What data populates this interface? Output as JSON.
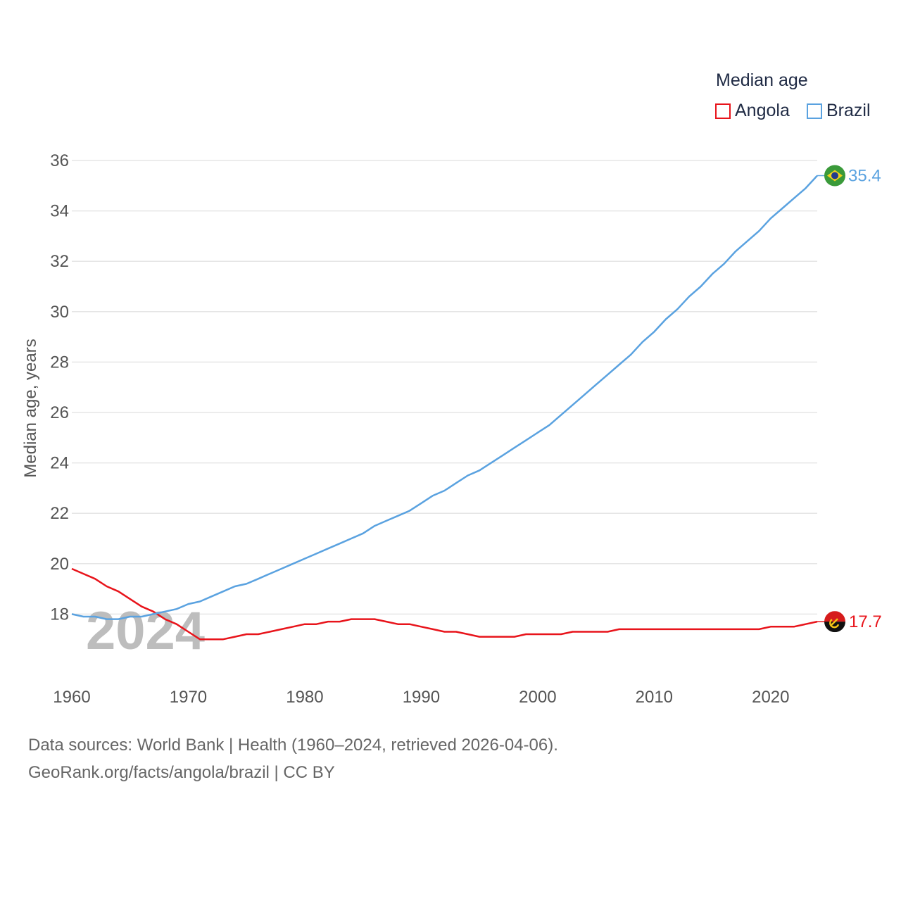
{
  "legend": {
    "title": "Median age",
    "items": [
      {
        "label": "Angola",
        "color": "#e8141b"
      },
      {
        "label": "Brazil",
        "color": "#5aa2e0"
      }
    ]
  },
  "source": {
    "line1": "Data sources: World Bank | Health (1960–2024, retrieved 2026-04-06).",
    "line2": "GeoRank.org/facts/angola/brazil | CC BY"
  },
  "chart_data": {
    "type": "line",
    "title": "Median age",
    "ylabel": "Median age, years",
    "xlabel": "",
    "xlim": [
      1960,
      2024
    ],
    "ylim": [
      16,
      36
    ],
    "yticks": [
      18,
      20,
      22,
      24,
      26,
      28,
      30,
      32,
      34,
      36
    ],
    "xticks": [
      1960,
      1970,
      1980,
      1990,
      2000,
      2010,
      2020
    ],
    "watermark_year": "2024",
    "x": [
      1960,
      1961,
      1962,
      1963,
      1964,
      1965,
      1966,
      1967,
      1968,
      1969,
      1970,
      1971,
      1972,
      1973,
      1974,
      1975,
      1976,
      1977,
      1978,
      1979,
      1980,
      1981,
      1982,
      1983,
      1984,
      1985,
      1986,
      1987,
      1988,
      1989,
      1990,
      1991,
      1992,
      1993,
      1994,
      1995,
      1996,
      1997,
      1998,
      1999,
      2000,
      2001,
      2002,
      2003,
      2004,
      2005,
      2006,
      2007,
      2008,
      2009,
      2010,
      2011,
      2012,
      2013,
      2014,
      2015,
      2016,
      2017,
      2018,
      2019,
      2020,
      2021,
      2022,
      2023,
      2024
    ],
    "series": [
      {
        "name": "Angola",
        "color": "#e8141b",
        "end_label": "17.7",
        "values": [
          19.8,
          19.6,
          19.4,
          19.1,
          18.9,
          18.6,
          18.3,
          18.1,
          17.8,
          17.6,
          17.3,
          17.0,
          17.0,
          17.0,
          17.1,
          17.2,
          17.2,
          17.3,
          17.4,
          17.5,
          17.6,
          17.6,
          17.7,
          17.7,
          17.8,
          17.8,
          17.8,
          17.7,
          17.6,
          17.6,
          17.5,
          17.4,
          17.3,
          17.3,
          17.2,
          17.1,
          17.1,
          17.1,
          17.1,
          17.2,
          17.2,
          17.2,
          17.2,
          17.3,
          17.3,
          17.3,
          17.3,
          17.4,
          17.4,
          17.4,
          17.4,
          17.4,
          17.4,
          17.4,
          17.4,
          17.4,
          17.4,
          17.4,
          17.4,
          17.4,
          17.5,
          17.5,
          17.5,
          17.6,
          17.7
        ]
      },
      {
        "name": "Brazil",
        "color": "#5aa2e0",
        "end_label": "35.4",
        "values": [
          18.0,
          17.9,
          17.9,
          17.8,
          17.8,
          17.9,
          17.9,
          18.0,
          18.1,
          18.2,
          18.4,
          18.5,
          18.7,
          18.9,
          19.1,
          19.2,
          19.4,
          19.6,
          19.8,
          20.0,
          20.2,
          20.4,
          20.6,
          20.8,
          21.0,
          21.2,
          21.5,
          21.7,
          21.9,
          22.1,
          22.4,
          22.7,
          22.9,
          23.2,
          23.5,
          23.7,
          24.0,
          24.3,
          24.6,
          24.9,
          25.2,
          25.5,
          25.9,
          26.3,
          26.7,
          27.1,
          27.5,
          27.9,
          28.3,
          28.8,
          29.2,
          29.7,
          30.1,
          30.6,
          31.0,
          31.5,
          31.9,
          32.4,
          32.8,
          33.2,
          33.7,
          34.1,
          34.5,
          34.9,
          35.4
        ]
      }
    ]
  }
}
